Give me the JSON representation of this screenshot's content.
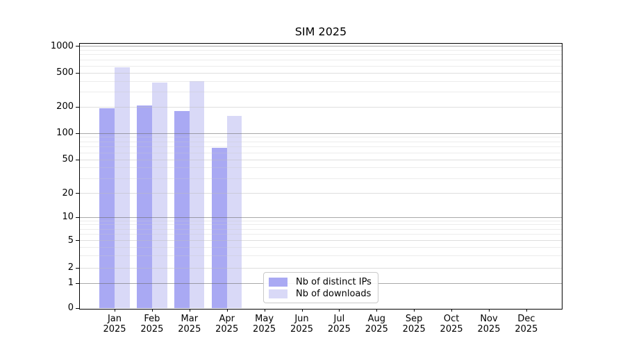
{
  "title": "SIM 2025",
  "chart_data": {
    "type": "bar",
    "title": "SIM 2025",
    "categories": [
      "Jan",
      "Feb",
      "Mar",
      "Apr",
      "May",
      "Jun",
      "Jul",
      "Aug",
      "Sep",
      "Oct",
      "Nov",
      "Dec"
    ],
    "year_label": "2025",
    "series": [
      {
        "name": "Nb of distinct IPs",
        "color": "#a9a9f3",
        "values": [
          190,
          205,
          178,
          68,
          null,
          null,
          null,
          null,
          null,
          null,
          null,
          null
        ]
      },
      {
        "name": "Nb of downloads",
        "color": "#d9d9f7",
        "values": [
          570,
          385,
          395,
          157,
          null,
          null,
          null,
          null,
          null,
          null,
          null,
          null
        ]
      }
    ],
    "yscale": "symlog",
    "ylim": [
      0,
      1000
    ],
    "yticks": [
      0,
      1,
      2,
      5,
      10,
      20,
      50,
      100,
      200,
      500,
      1000
    ],
    "ytick_labels": [
      "0",
      "1",
      "2",
      "5",
      "10",
      "20",
      "50",
      "100",
      "200",
      "500",
      "1000"
    ],
    "grid": "horizontal major + log minors, drawn over bars",
    "grid_decade_values": [
      1,
      10,
      100,
      1000
    ],
    "legend_position": "lower center-left, inside axes",
    "colors": {
      "distinct_ips": "#a9a9f3",
      "downloads": "#d9d9f7",
      "grid_decade": "#6e6e6e",
      "grid_light": "#bebebe",
      "axis": "#000000",
      "background": "#ffffff"
    }
  }
}
